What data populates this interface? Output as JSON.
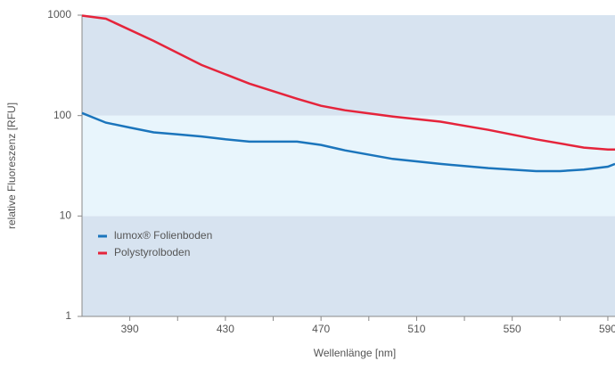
{
  "chart_data": {
    "type": "line",
    "x_label": "Wellenlänge [nm]",
    "y_label": "relative Fluoreszenz [RFU]",
    "xlim": [
      370,
      593
    ],
    "xticks": [
      390,
      430,
      470,
      510,
      550,
      590
    ],
    "minor_xticks": [
      410,
      450,
      490,
      530,
      570
    ],
    "ylim": [
      1,
      1000
    ],
    "yticks": [
      1,
      10,
      100,
      1000
    ],
    "y_log": true,
    "band_colors": [
      "#d7e3f0",
      "#e8f5fc",
      "#d7e3f0"
    ],
    "legend": "lower-left",
    "series": [
      {
        "name": "lumox® Folienboden",
        "color": "#1b75bc",
        "x": [
          370,
          380,
          390,
          400,
          410,
          420,
          430,
          440,
          460,
          470,
          480,
          500,
          520,
          540,
          560,
          570,
          580,
          590,
          593
        ],
        "values": [
          106,
          85,
          76,
          68,
          65,
          62,
          58,
          55,
          55,
          51,
          45,
          37,
          33,
          30,
          28,
          28,
          29,
          31,
          33
        ]
      },
      {
        "name": "Polystyrolboden",
        "color": "#e5243b",
        "x": [
          370,
          380,
          400,
          420,
          440,
          460,
          470,
          480,
          500,
          520,
          540,
          560,
          580,
          590,
          593
        ],
        "values": [
          990,
          922,
          554,
          319,
          208,
          147,
          125,
          113,
          98,
          87,
          72,
          58,
          48,
          46,
          46
        ]
      }
    ]
  }
}
